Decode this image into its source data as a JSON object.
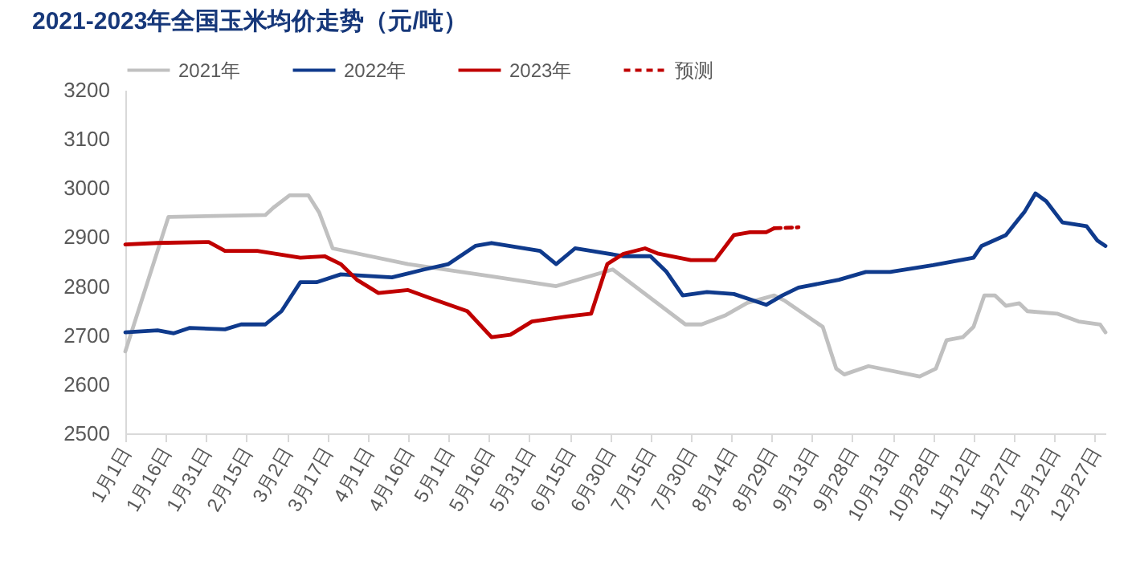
{
  "chart_data": {
    "type": "line",
    "title": "2021-2023年全国玉米均价走势（元/吨）",
    "xlim": [
      "--01-01",
      "--12-31"
    ],
    "xticks": [
      {
        "value": "--01-01",
        "label": "1月1日"
      },
      {
        "value": "--01-16",
        "label": "1月16日"
      },
      {
        "value": "--01-31",
        "label": "1月31日"
      },
      {
        "value": "--02-15",
        "label": "2月15日"
      },
      {
        "value": "--03-02",
        "label": "3月2日"
      },
      {
        "value": "--03-17",
        "label": "3月17日"
      },
      {
        "value": "--04-01",
        "label": "4月1日"
      },
      {
        "value": "--04-16",
        "label": "4月16日"
      },
      {
        "value": "--05-01",
        "label": "5月1日"
      },
      {
        "value": "--05-16",
        "label": "5月16日"
      },
      {
        "value": "--05-31",
        "label": "5月31日"
      },
      {
        "value": "--06-15",
        "label": "6月15日"
      },
      {
        "value": "--06-30",
        "label": "6月30日"
      },
      {
        "value": "--07-15",
        "label": "7月15日"
      },
      {
        "value": "--07-30",
        "label": "7月30日"
      },
      {
        "value": "--08-14",
        "label": "8月14日"
      },
      {
        "value": "--08-29",
        "label": "8月29日"
      },
      {
        "value": "--09-13",
        "label": "9月13日"
      },
      {
        "value": "--09-28",
        "label": "9月28日"
      },
      {
        "value": "--10-13",
        "label": "10月13日"
      },
      {
        "value": "--10-28",
        "label": "10月28日"
      },
      {
        "value": "--11-12",
        "label": "11月12日"
      },
      {
        "value": "--11-27",
        "label": "11月27日"
      },
      {
        "value": "--12-12",
        "label": "12月12日"
      },
      {
        "value": "--12-27",
        "label": "12月27日"
      }
    ],
    "ylim": [
      2500,
      3200
    ],
    "yticks": [
      2500,
      2600,
      2700,
      2800,
      2900,
      3000,
      3100,
      3200
    ],
    "grid": false,
    "legend": "top",
    "marker": "none",
    "series": [
      {
        "name": "2021年",
        "color": "#c0c0c0",
        "x": [
          "--01-01",
          "--01-17",
          "--02-22",
          "--02-25",
          "--03-03",
          "--03-10",
          "--03-14",
          "--03-19",
          "--04-16",
          "--05-17",
          "--06-10",
          "--07-01",
          "--07-28",
          "--08-03",
          "--08-12",
          "--08-20",
          "--08-30",
          "--09-03",
          "--09-17",
          "--09-22",
          "--09-25",
          "--10-04",
          "--10-23",
          "--10-29",
          "--11-02",
          "--11-08",
          "--11-12",
          "--11-16",
          "--11-20",
          "--11-24",
          "--11-29",
          "--12-02",
          "--12-13",
          "--12-21",
          "--12-29",
          "--12-31"
        ],
        "values": [
          2667,
          2941,
          2945,
          2960,
          2985,
          2985,
          2950,
          2877,
          2845,
          2820,
          2800,
          2834,
          2722,
          2722,
          2741,
          2766,
          2781,
          2770,
          2717,
          2632,
          2620,
          2637,
          2616,
          2632,
          2690,
          2696,
          2717,
          2781,
          2781,
          2760,
          2765,
          2749,
          2744,
          2728,
          2722,
          2706
        ]
      },
      {
        "name": "2022年",
        "color": "#0f3a8c",
        "x": [
          "--01-01",
          "--01-13",
          "--01-19",
          "--01-25",
          "--02-07",
          "--02-13",
          "--02-22",
          "--02-28",
          "--03-07",
          "--03-13",
          "--03-22",
          "--04-10",
          "--04-22",
          "--05-01",
          "--05-11",
          "--05-17",
          "--06-04",
          "--06-10",
          "--06-17",
          "--06-23",
          "--07-05",
          "--07-15",
          "--07-21",
          "--07-27",
          "--08-05",
          "--08-15",
          "--08-27",
          "--09-02",
          "--09-08",
          "--09-23",
          "--10-03",
          "--10-12",
          "--10-28",
          "--11-12",
          "--11-15",
          "--11-24",
          "--12-01",
          "--12-05",
          "--12-09",
          "--12-15",
          "--12-24",
          "--12-28",
          "--12-31"
        ],
        "values": [
          2706,
          2710,
          2704,
          2715,
          2712,
          2722,
          2722,
          2749,
          2808,
          2808,
          2824,
          2818,
          2834,
          2845,
          2882,
          2888,
          2872,
          2845,
          2877,
          2872,
          2861,
          2861,
          2829,
          2781,
          2788,
          2784,
          2762,
          2781,
          2797,
          2813,
          2829,
          2829,
          2843,
          2858,
          2882,
          2904,
          2952,
          2989,
          2973,
          2930,
          2922,
          2893,
          2882
        ]
      },
      {
        "name": "2023年",
        "color": "#c00000",
        "x": [
          "--01-01",
          "--01-13",
          "--02-01",
          "--02-07",
          "--02-19",
          "--03-07",
          "--03-16",
          "--03-22",
          "--03-28",
          "--04-05",
          "--04-16",
          "--04-24",
          "--05-08",
          "--05-17",
          "--05-24",
          "--06-01",
          "--06-14",
          "--06-23",
          "--06-29",
          "--07-05",
          "--07-13",
          "--07-18",
          "--07-30",
          "--08-08",
          "--08-15",
          "--08-21",
          "--08-27",
          "--08-30"
        ],
        "values": [
          2885,
          2888,
          2890,
          2872,
          2872,
          2858,
          2861,
          2845,
          2813,
          2786,
          2792,
          2776,
          2749,
          2696,
          2701,
          2728,
          2738,
          2744,
          2845,
          2866,
          2877,
          2866,
          2853,
          2853,
          2904,
          2910,
          2910,
          2918
        ]
      },
      {
        "name": "预测",
        "color": "#c00000",
        "line_style": "dashed",
        "x": [
          "--08-30",
          "--09-08"
        ],
        "values": [
          2918,
          2920
        ]
      }
    ]
  }
}
